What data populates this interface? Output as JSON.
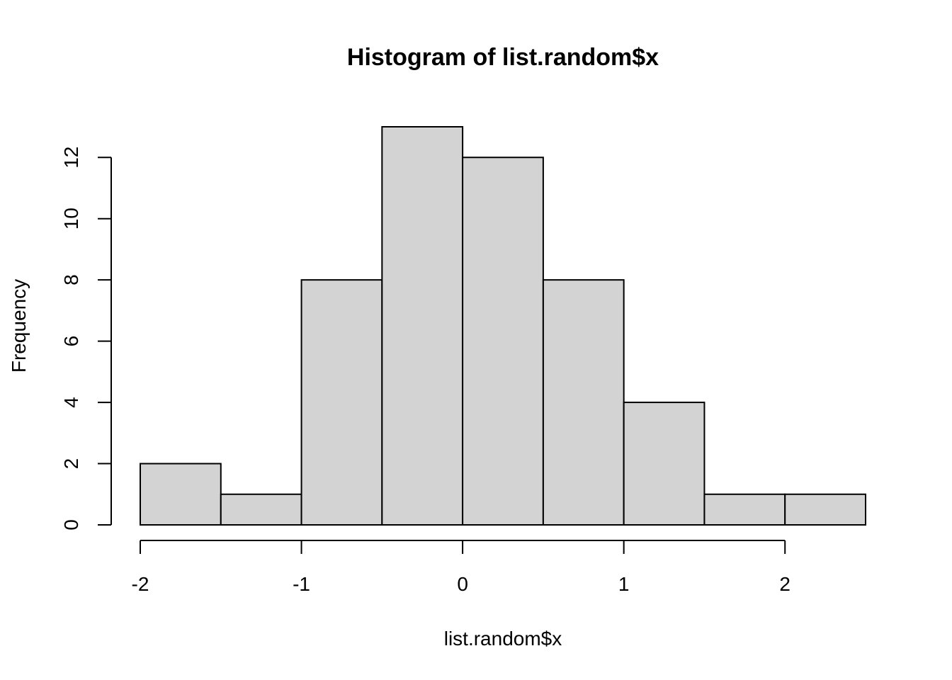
{
  "chart_data": {
    "type": "bar",
    "title": "Histogram of list.random$x",
    "xlabel": "list.random$x",
    "ylabel": "Frequency",
    "bins": [
      {
        "from": -2.0,
        "to": -1.5,
        "count": 2
      },
      {
        "from": -1.5,
        "to": -1.0,
        "count": 1
      },
      {
        "from": -1.0,
        "to": -0.5,
        "count": 8
      },
      {
        "from": -0.5,
        "to": 0.0,
        "count": 13
      },
      {
        "from": 0.0,
        "to": 0.5,
        "count": 12
      },
      {
        "from": 0.5,
        "to": 1.0,
        "count": 8
      },
      {
        "from": 1.0,
        "to": 1.5,
        "count": 4
      },
      {
        "from": 1.5,
        "to": 2.0,
        "count": 1
      },
      {
        "from": 2.0,
        "to": 2.5,
        "count": 1
      }
    ],
    "xlim": [
      -2.0,
      2.5
    ],
    "ylim": [
      0,
      13
    ],
    "x_ticks": [
      -2,
      -1,
      0,
      1,
      2
    ],
    "y_ticks": [
      0,
      2,
      4,
      6,
      8,
      10,
      12
    ],
    "grid": false,
    "bar_color": "#d3d3d3",
    "edge_color": "#000000"
  }
}
